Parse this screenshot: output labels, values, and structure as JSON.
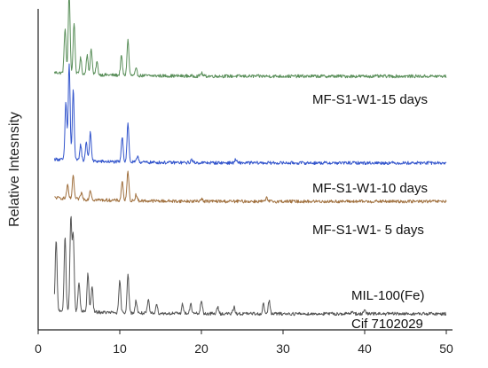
{
  "chart_data": {
    "type": "line",
    "ylabel": "Relative Intesnsity",
    "xlabel": "",
    "xlim": [
      0,
      50
    ],
    "x_ticks": [
      "0",
      "10",
      "20",
      "30",
      "40",
      "50"
    ],
    "y_ticks_shown": false,
    "grid": false,
    "legend": "inline labels right",
    "series": [
      {
        "name": "MF-S1-W1-15 days",
        "color": "#5a8f5a",
        "baseline": 0.79,
        "peaks": [
          [
            3.3,
            0.14
          ],
          [
            3.8,
            0.25
          ],
          [
            4.4,
            0.16
          ],
          [
            5.2,
            0.05
          ],
          [
            6.0,
            0.06
          ],
          [
            6.5,
            0.08
          ],
          [
            7.2,
            0.04
          ],
          [
            10.2,
            0.06
          ],
          [
            11.0,
            0.11
          ],
          [
            12.0,
            0.02
          ],
          [
            20.0,
            0.01
          ]
        ]
      },
      {
        "name": "MF-S1-W1-10 days",
        "color": "#3355cc",
        "baseline": 0.52,
        "peaks": [
          [
            3.4,
            0.18
          ],
          [
            3.8,
            0.3
          ],
          [
            4.3,
            0.22
          ],
          [
            5.2,
            0.05
          ],
          [
            5.9,
            0.06
          ],
          [
            6.4,
            0.09
          ],
          [
            10.3,
            0.08
          ],
          [
            11.0,
            0.12
          ],
          [
            12.2,
            0.02
          ],
          [
            18.8,
            0.01
          ],
          [
            24.2,
            0.01
          ]
        ]
      },
      {
        "name": "MF-S1-W1- 5 days",
        "color": "#a0703e",
        "baseline": 0.4,
        "peaks": [
          [
            3.6,
            0.04
          ],
          [
            4.3,
            0.07
          ],
          [
            5.3,
            0.02
          ],
          [
            6.4,
            0.03
          ],
          [
            10.3,
            0.06
          ],
          [
            11.0,
            0.09
          ],
          [
            12.0,
            0.02
          ],
          [
            20.0,
            0.01
          ],
          [
            28.0,
            0.01
          ]
        ]
      },
      {
        "name": "MIL-100(Fe)\nCif 7102029",
        "color": "#555555",
        "baseline": 0.05,
        "peaks": [
          [
            2.2,
            0.22
          ],
          [
            3.3,
            0.23
          ],
          [
            4.0,
            0.29
          ],
          [
            4.3,
            0.24
          ],
          [
            5.0,
            0.09
          ],
          [
            6.1,
            0.12
          ],
          [
            6.6,
            0.08
          ],
          [
            10.0,
            0.1
          ],
          [
            11.0,
            0.12
          ],
          [
            12.0,
            0.04
          ],
          [
            13.5,
            0.04
          ],
          [
            14.5,
            0.03
          ],
          [
            17.7,
            0.03
          ],
          [
            18.7,
            0.03
          ],
          [
            20.0,
            0.04
          ],
          [
            22.0,
            0.02
          ],
          [
            24.0,
            0.02
          ],
          [
            27.6,
            0.03
          ],
          [
            28.3,
            0.04
          ],
          [
            38.5,
            0.01
          ],
          [
            40.0,
            0.01
          ]
        ]
      }
    ]
  },
  "series_labels": {
    "s15": "MF-S1-W1-15 days",
    "s10": "MF-S1-W1-10 days",
    "s5": "MF-S1-W1- 5 days",
    "mil_a": "MIL-100(Fe)",
    "mil_b": "Cif 7102029"
  }
}
